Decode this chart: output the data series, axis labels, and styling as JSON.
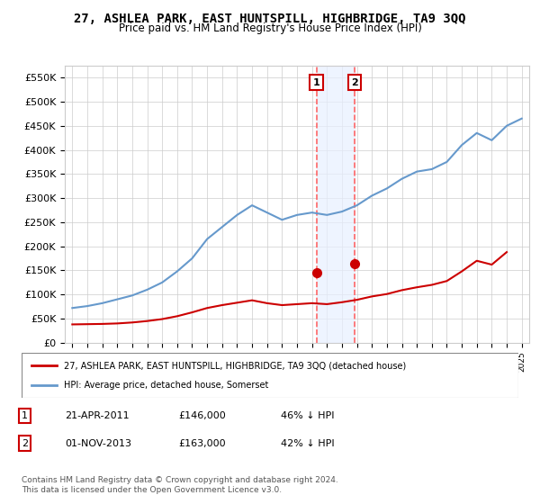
{
  "title": "27, ASHLEA PARK, EAST HUNTSPILL, HIGHBRIDGE, TA9 3QQ",
  "subtitle": "Price paid vs. HM Land Registry's House Price Index (HPI)",
  "legend_line1": "27, ASHLEA PARK, EAST HUNTSPILL, HIGHBRIDGE, TA9 3QQ (detached house)",
  "legend_line2": "HPI: Average price, detached house, Somerset",
  "footnote": "Contains HM Land Registry data © Crown copyright and database right 2024.\nThis data is licensed under the Open Government Licence v3.0.",
  "table_rows": [
    {
      "num": "1",
      "date": "21-APR-2011",
      "price": "£146,000",
      "pct": "46% ↓ HPI"
    },
    {
      "num": "2",
      "date": "01-NOV-2013",
      "price": "£163,000",
      "pct": "42% ↓ HPI"
    }
  ],
  "transactions": [
    {
      "year": 2011.3,
      "price": 146000
    },
    {
      "year": 2013.83,
      "price": 163000
    }
  ],
  "hpi_line_color": "#6699cc",
  "property_line_color": "#cc0000",
  "marker_color": "#cc0000",
  "vline_color": "#ff6666",
  "highlight_color": "#e8f0ff",
  "ylim": [
    0,
    575000
  ],
  "yticks": [
    0,
    50000,
    100000,
    150000,
    200000,
    250000,
    300000,
    350000,
    400000,
    450000,
    500000,
    550000
  ],
  "ytick_labels": [
    "£0",
    "£50K",
    "£100K",
    "£150K",
    "£200K",
    "£250K",
    "£300K",
    "£350K",
    "£400K",
    "£450K",
    "£500K",
    "£550K"
  ],
  "hpi_years": [
    1995,
    1996,
    1997,
    1998,
    1999,
    2000,
    2001,
    2002,
    2003,
    2004,
    2005,
    2006,
    2007,
    2008,
    2009,
    2010,
    2011,
    2012,
    2013,
    2014,
    2015,
    2016,
    2017,
    2018,
    2019,
    2020,
    2021,
    2022,
    2023,
    2024,
    2025
  ],
  "hpi_values": [
    72000,
    76000,
    82000,
    90000,
    98000,
    110000,
    125000,
    148000,
    175000,
    215000,
    240000,
    265000,
    285000,
    270000,
    255000,
    265000,
    270000,
    265000,
    272000,
    285000,
    305000,
    320000,
    340000,
    355000,
    360000,
    375000,
    410000,
    435000,
    420000,
    450000,
    465000
  ],
  "prop_years": [
    1995,
    1996,
    1997,
    1998,
    1999,
    2000,
    2001,
    2002,
    2003,
    2004,
    2005,
    2006,
    2007,
    2008,
    2009,
    2010,
    2011,
    2012,
    2013,
    2014,
    2015,
    2016,
    2017,
    2018,
    2019,
    2020,
    2021,
    2022,
    2023,
    2024
  ],
  "prop_values": [
    38000,
    38500,
    39000,
    40000,
    42000,
    45000,
    49000,
    55000,
    63000,
    72000,
    78000,
    83000,
    88000,
    82000,
    78000,
    80000,
    82000,
    80000,
    84000,
    89000,
    96000,
    101000,
    109000,
    115000,
    120000,
    128000,
    148000,
    170000,
    162000,
    188000
  ]
}
